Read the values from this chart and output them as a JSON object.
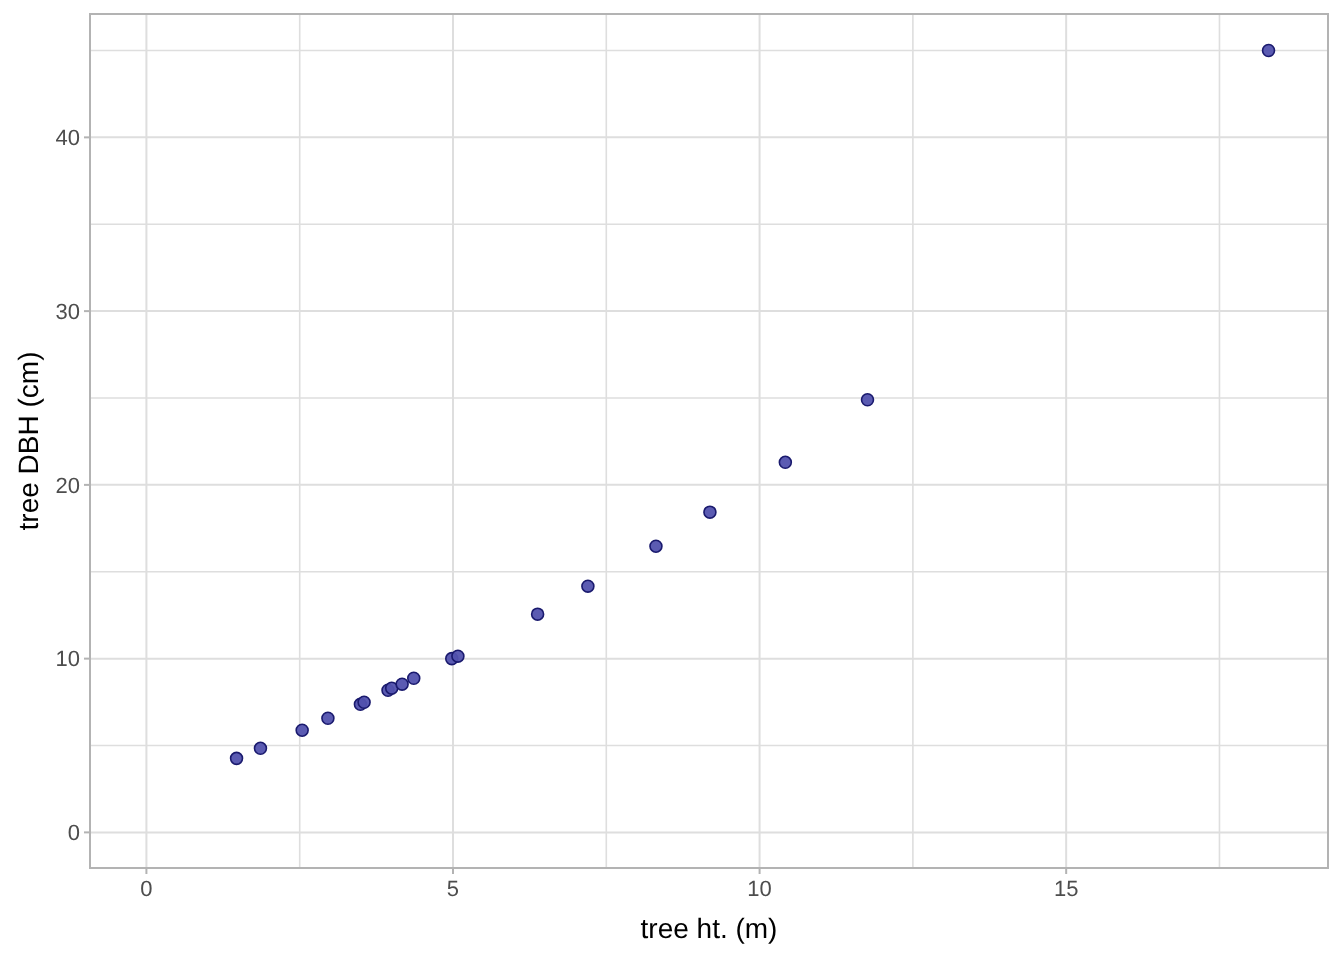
{
  "chart_data": {
    "type": "scatter",
    "xlabel": "tree ht. (m)",
    "ylabel": "tree DBH (cm)",
    "x": [
      1.47,
      1.86,
      2.54,
      2.96,
      3.49,
      3.55,
      3.94,
      4.0,
      4.17,
      4.36,
      4.98,
      5.08,
      6.38,
      7.2,
      8.31,
      9.19,
      10.42,
      11.76,
      18.3
    ],
    "series": [
      {
        "color": "#5252ae",
        "values": [
          4.26,
          4.84,
          5.88,
          6.57,
          7.37,
          7.49,
          8.18,
          8.3,
          8.53,
          8.87,
          10.0,
          10.14,
          12.56,
          14.17,
          16.47,
          18.43,
          21.3,
          24.9,
          45.0
        ]
      }
    ],
    "xlim": [
      -0.92,
      19.27
    ],
    "ylim": [
      -2.05,
      47.1
    ],
    "xticks": [
      0,
      {
        "value": 2.5,
        "label": null
      },
      5,
      {
        "value": 7.5,
        "label": null
      },
      10,
      {
        "value": 12.5,
        "label": null
      },
      15,
      {
        "value": 17.5,
        "label": null
      }
    ],
    "yticks": [
      0,
      {
        "value": 5,
        "label": null
      },
      10,
      {
        "value": 15,
        "label": null
      },
      20,
      {
        "value": 25,
        "label": null
      },
      30,
      {
        "value": 35,
        "label": null
      },
      40,
      {
        "value": 45,
        "label": null
      }
    ],
    "grid": true,
    "marker": "circle"
  }
}
